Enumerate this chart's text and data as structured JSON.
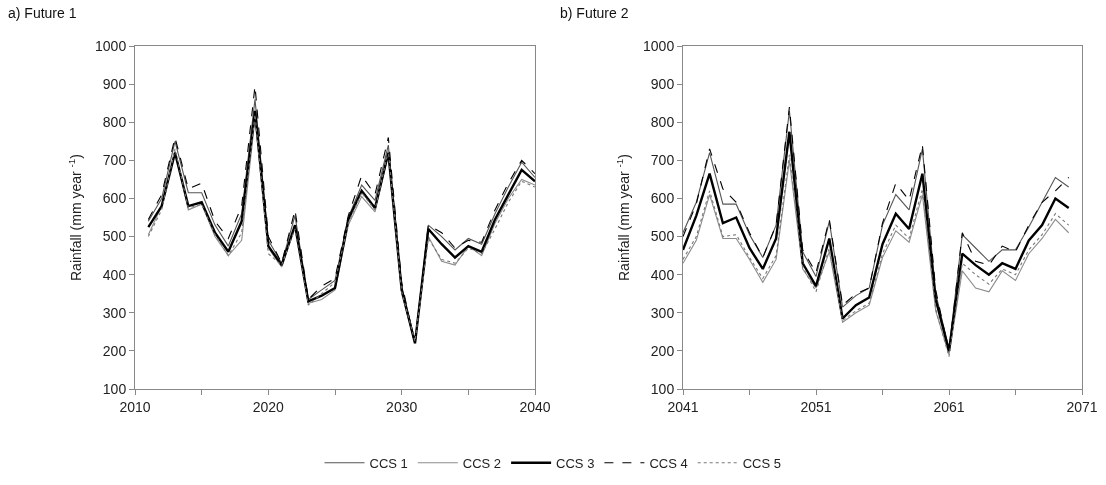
{
  "chart_data": [
    {
      "type": "line",
      "title": "a) Future 1",
      "ylabel": "Rainfall (mm year $^{-1}$)",
      "x": [
        2011,
        2012,
        2013,
        2014,
        2015,
        2016,
        2017,
        2018,
        2019,
        2020,
        2021,
        2022,
        2023,
        2024,
        2025,
        2026,
        2027,
        2028,
        2029,
        2030,
        2031,
        2032,
        2033,
        2034,
        2035,
        2036,
        2037,
        2038,
        2039,
        2040
      ],
      "xlim": [
        2010,
        2040
      ],
      "xticks": [
        2010,
        {
          "value": 2015,
          "label": null
        },
        2020,
        {
          "value": 2025,
          "label": null
        },
        2030,
        {
          "value": 2035,
          "label": null
        },
        2040
      ],
      "ylim": [
        100,
        1000
      ],
      "yticks": [
        100,
        200,
        300,
        400,
        500,
        600,
        700,
        800,
        900,
        1000
      ],
      "grid": false,
      "legend": "bottom",
      "marker": "none",
      "series": [
        {
          "name": "CCS 1",
          "color": "#555555",
          "line_style": "solid",
          "values": [
            540,
            600,
            750,
            615,
            615,
            530,
            475,
            560,
            860,
            490,
            430,
            555,
            335,
            360,
            385,
            550,
            635,
            595,
            740,
            370,
            225,
            530,
            500,
            465,
            495,
            480,
            560,
            630,
            695,
            655
          ]
        },
        {
          "name": "CCS 2",
          "color": "#8c8c8c",
          "line_style": "solid",
          "values": [
            505,
            580,
            725,
            570,
            585,
            500,
            450,
            490,
            810,
            470,
            420,
            525,
            325,
            335,
            360,
            530,
            605,
            565,
            715,
            350,
            220,
            500,
            435,
            425,
            475,
            450,
            535,
            600,
            650,
            635
          ]
        },
        {
          "name": "CCS 3",
          "color": "#000000",
          "line_style": "solid",
          "values": [
            525,
            580,
            720,
            580,
            590,
            510,
            460,
            540,
            830,
            475,
            425,
            530,
            330,
            345,
            365,
            545,
            620,
            575,
            720,
            360,
            220,
            520,
            480,
            445,
            475,
            460,
            545,
            610,
            675,
            645
          ]
        },
        {
          "name": "CCS 4",
          "color": "#000000",
          "line_style": "dashed",
          "values": [
            545,
            610,
            760,
            625,
            640,
            540,
            495,
            580,
            895,
            500,
            430,
            570,
            335,
            370,
            390,
            555,
            660,
            610,
            760,
            380,
            215,
            530,
            510,
            470,
            490,
            485,
            570,
            640,
            700,
            665
          ]
        },
        {
          "name": "CCS 5",
          "color": "#777777",
          "line_style": "dotted",
          "values": [
            500,
            570,
            730,
            575,
            585,
            505,
            450,
            510,
            820,
            455,
            425,
            520,
            320,
            350,
            380,
            535,
            615,
            570,
            725,
            355,
            225,
            495,
            440,
            430,
            470,
            455,
            520,
            590,
            645,
            630
          ]
        }
      ]
    },
    {
      "type": "line",
      "title": "b) Future 2",
      "ylabel": "Rainfall (mm year $^{-1}$)",
      "x": [
        2041,
        2042,
        2043,
        2044,
        2045,
        2046,
        2047,
        2048,
        2049,
        2050,
        2051,
        2052,
        2053,
        2054,
        2055,
        2056,
        2057,
        2058,
        2059,
        2060,
        2061,
        2062,
        2063,
        2064,
        2065,
        2066,
        2067,
        2068,
        2069,
        2070
      ],
      "xlim": [
        2041,
        2071
      ],
      "xticks": [
        2041,
        {
          "value": 2046,
          "label": null
        },
        2051,
        {
          "value": 2056,
          "label": null
        },
        2061,
        {
          "value": 2066,
          "label": null
        },
        2071
      ],
      "ylim": [
        100,
        1000
      ],
      "yticks": [
        100,
        200,
        300,
        400,
        500,
        600,
        700,
        800,
        900,
        1000
      ],
      "grid": false,
      "legend": false,
      "marker": "none",
      "series": [
        {
          "color": "#555555",
          "line_style": "solid",
          "values": [
            510,
            590,
            720,
            585,
            585,
            505,
            445,
            530,
            830,
            460,
            395,
            540,
            315,
            345,
            365,
            530,
            610,
            570,
            730,
            350,
            205,
            505,
            470,
            435,
            465,
            465,
            525,
            590,
            655,
            630
          ]
        },
        {
          "color": "#8c8c8c",
          "line_style": "solid",
          "values": [
            430,
            490,
            610,
            495,
            495,
            440,
            380,
            440,
            700,
            415,
            365,
            460,
            275,
            300,
            320,
            445,
            515,
            485,
            610,
            305,
            190,
            410,
            365,
            355,
            410,
            385,
            455,
            495,
            545,
            510
          ]
        },
        {
          "color": "#000000",
          "line_style": "solid",
          "values": [
            465,
            555,
            665,
            535,
            550,
            470,
            415,
            495,
            775,
            430,
            370,
            495,
            285,
            320,
            340,
            480,
            560,
            520,
            665,
            335,
            200,
            455,
            425,
            400,
            430,
            415,
            490,
            530,
            600,
            575
          ]
        },
        {
          "color": "#000000",
          "line_style": "dashed",
          "values": [
            500,
            585,
            730,
            625,
            590,
            510,
            445,
            530,
            840,
            465,
            405,
            545,
            320,
            350,
            365,
            535,
            640,
            595,
            740,
            360,
            195,
            510,
            435,
            425,
            475,
            460,
            530,
            590,
            620,
            655
          ]
        },
        {
          "color": "#777777",
          "line_style": "dotted",
          "values": [
            440,
            500,
            620,
            500,
            505,
            445,
            390,
            450,
            715,
            420,
            355,
            470,
            280,
            305,
            325,
            455,
            530,
            495,
            625,
            310,
            185,
            430,
            400,
            375,
            415,
            400,
            465,
            505,
            560,
            530
          ]
        }
      ]
    }
  ]
}
